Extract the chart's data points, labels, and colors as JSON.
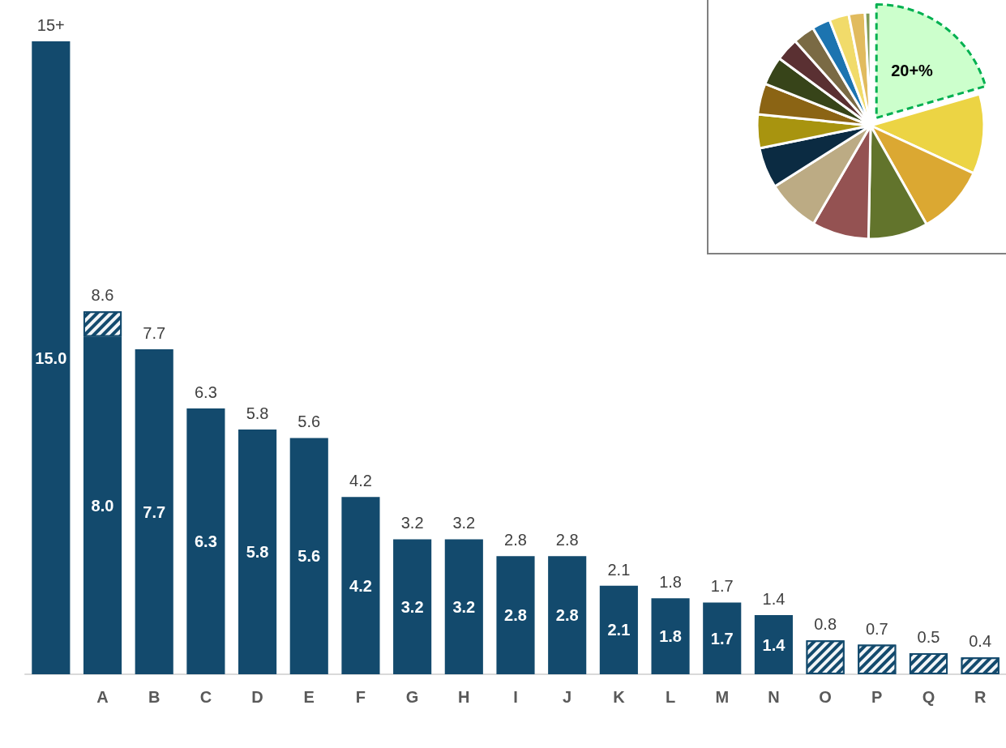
{
  "chart_data": [
    {
      "type": "bar",
      "stacked": true,
      "categories": [
        null,
        "A",
        "B",
        "C",
        "D",
        "E",
        "F",
        "G",
        "H",
        "I",
        "J",
        "K",
        "L",
        "M",
        "N",
        "O",
        "P",
        "Q",
        "R"
      ],
      "series": [
        {
          "color": "#134a6d",
          "values": [
            15.0,
            8.0,
            7.7,
            6.3,
            5.8,
            5.6,
            4.2,
            3.2,
            3.2,
            2.8,
            2.8,
            2.1,
            1.8,
            1.7,
            1.4,
            null,
            null,
            null,
            null
          ],
          "value_labels": [
            "15.0",
            "8.0",
            "7.7",
            "6.3",
            "5.8",
            "5.6",
            "4.2",
            "3.2",
            "3.2",
            "2.8",
            "2.8",
            "2.1",
            "1.8",
            "1.7",
            "1.4",
            null,
            null,
            null,
            null
          ]
        },
        {
          "color": "#134a6d",
          "values": [
            null,
            0.6,
            null,
            null,
            null,
            null,
            null,
            null,
            null,
            null,
            null,
            null,
            null,
            null,
            null,
            0.8,
            0.7,
            0.5,
            0.4
          ]
        }
      ],
      "totals": [
        "15+",
        "8.6",
        "7.7",
        "6.3",
        "5.8",
        "5.6",
        "4.2",
        "3.2",
        "3.2",
        "2.8",
        "2.8",
        "2.1",
        "1.8",
        "1.7",
        "1.4",
        "0.8",
        "0.7",
        "0.5",
        "0.4"
      ]
    },
    {
      "type": "pie",
      "categories": [
        null,
        null,
        null,
        null,
        null,
        null,
        null,
        null,
        null,
        null,
        null,
        null,
        null,
        null,
        null,
        null
      ],
      "values": [
        20.5,
        11.4,
        9.9,
        8.5,
        8.1,
        7.6,
        5.8,
        4.8,
        4.4,
        4.1,
        3.3,
        3.1,
        2.6,
        2.8,
        2.3,
        0.8
      ],
      "colors": [
        "#ccffcc",
        "#ecd444",
        "#dba832",
        "#62742c",
        "#945252",
        "#bcab84",
        "#0b2b42",
        "#a8940f",
        "#8b6414",
        "#374419",
        "#5a3032",
        "#7a6a44",
        "#1c74b0",
        "#f1db6a",
        "#e1bb5e",
        "#7f9a54"
      ],
      "value_labels": [
        "20+%",
        null,
        null,
        null,
        null,
        null,
        null,
        null,
        null,
        null,
        null,
        null,
        null,
        null,
        null,
        null
      ]
    }
  ]
}
